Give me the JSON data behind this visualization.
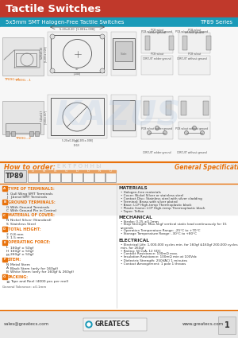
{
  "title": "Tactile Switches",
  "subtitle": "5x5mm SMT Halogen-Free Tactile Switches",
  "series": "TP89 Series",
  "header_bg": "#c0392b",
  "subheader_bg": "#1a9ab8",
  "title_color": "#ffffff",
  "page_bg": "#ffffff",
  "orange_color": "#e8720c",
  "line_color": "#e8720c",
  "how_to_order_title": "How to order:",
  "general_specs_title": "General Specifications:",
  "part_prefix": "TP89",
  "label_A": "A",
  "label_B": "B",
  "label_C": "C",
  "label_N": "N",
  "label_S": "S",
  "label_1": "1",
  "label_2": "2",
  "label_3": "3",
  "label_T": "T",
  "label_10": "10",
  "type_of_terminals_label": "TYPE OF TERMINALS:",
  "type_items": [
    [
      "1",
      "Gull Wing SMT Terminals"
    ],
    [
      "J",
      "J-bend SMT Terminals"
    ]
  ],
  "ground_terminals_label": "GROUND TERMINALS:",
  "ground_items": [
    [
      "G",
      "With Ground Terminals"
    ],
    [
      "C",
      "With Ground Pin in Central"
    ]
  ],
  "material_label": "MATERIAL OF COVER:",
  "material_items": [
    [
      "N",
      "Nickel Silver (Standard)"
    ],
    [
      "S",
      "Stainless Steel"
    ]
  ],
  "total_height_label": "TOTAL HEIGHT:",
  "height_items": [
    [
      "2",
      "0.8 mm"
    ],
    [
      "3",
      "1.5 mm"
    ]
  ],
  "operating_force_label": "OPERATING FORCE:",
  "force_items": [
    [
      "L",
      "160gf ± 50gf"
    ],
    [
      "H",
      "160gf ± 50gf"
    ],
    [
      "M",
      "260gf ± 50gf"
    ]
  ],
  "stem_label": "STEM:",
  "stem_items": [
    [
      "N",
      "Metal Stem"
    ],
    [
      "A",
      "Black Stem (only for 160gf)"
    ],
    [
      "B",
      "White Stem (only for 160gf & 260gf)"
    ]
  ],
  "packing_label": "PACKING:",
  "packing_items": [
    [
      "10",
      "Tape and Reel (4000 pcs per reel)"
    ]
  ],
  "general_note": "General Tolerance: ±0.1mm",
  "materials_title": "MATERIALS",
  "mat_items": [
    "Halogen-free materials",
    "Cover: Nickel Silver or stainless steel",
    "Contact Disc: Stainless steel with silver cladding",
    "Terminal: Brass with silver plated",
    "Base: LCP High-temp Thermoplastic black",
    "Plastic frame: LCP High-temp Thermoplastic black",
    "Taper: Teflon"
  ],
  "mechanical_title": "MECHANICAL",
  "mech_items": [
    "Stroke: 0.25 ±0.1mm",
    "Stop Strength: Max.5kgf vertical static load continuously for 15 seconds",
    "Operation Temperature Range: -25°C to +70°C",
    "Storage Temperature Range: -30°C to +80°C"
  ],
  "electrical_title": "ELECTRICAL",
  "elec_items": [
    "Electrical Life: 1,000,000 cycles min. for 160gf &160gf 200,000 cycles min. for 260gf",
    "Rating: 50 mA, 12 VDC",
    "Contact Resistance: 100mΩ max.",
    "Insulation Resistance: 100mΩ min at 100Vdc",
    "Dielectric Strength: 250VAC/ 1 minutes",
    "Contact Arrangement: 1 pole 1 throws"
  ],
  "footer_left": "sales@greatecs.com",
  "footer_center": "GREATECS",
  "footer_right": "www.greatecs.com",
  "footer_page": "1",
  "footer_bg": "#e0e0e0",
  "box_colors_left": [
    "#e8720c",
    "#e8720c",
    "#e8720c",
    "#e8720c",
    "#e8720c",
    "#e8720c",
    "#e8720c"
  ],
  "order_box_colors": [
    "#e0a060",
    "#e0a060",
    "#e0a060",
    "#e0a060",
    "#e0a060",
    "#e0a060",
    "#e0a060",
    "#e0a060"
  ]
}
